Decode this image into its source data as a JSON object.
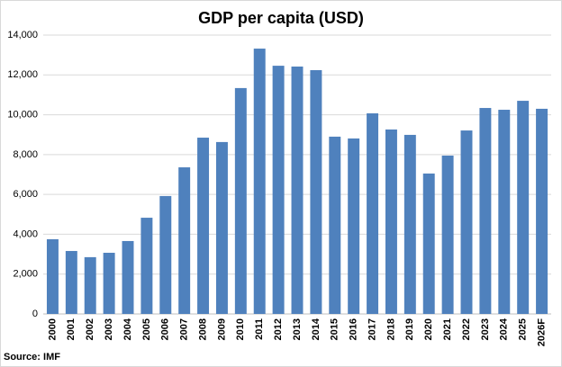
{
  "chart_data": {
    "type": "bar",
    "title": "GDP per capita (USD)",
    "source": "Source: IMF",
    "categories": [
      "2000",
      "2001",
      "2002",
      "2003",
      "2004",
      "2005",
      "2006",
      "2007",
      "2008",
      "2009",
      "2010",
      "2011",
      "2012",
      "2013",
      "2014",
      "2015",
      "2016",
      "2017",
      "2018",
      "2019",
      "2020",
      "2021",
      "2022",
      "2023",
      "2024",
      "2025",
      "2026F"
    ],
    "values": [
      3750,
      3160,
      2850,
      3070,
      3660,
      4830,
      5920,
      7360,
      8850,
      8630,
      11340,
      13320,
      12460,
      12420,
      12240,
      8900,
      8810,
      10070,
      9260,
      8990,
      7050,
      7950,
      9210,
      10340,
      10250,
      10700,
      10300
    ],
    "color": "#4f81bd",
    "ylim": [
      0,
      14000
    ],
    "yticks": [
      0,
      {
        "value": 2000,
        "label": "2,000"
      },
      {
        "value": 4000,
        "label": "4,000"
      },
      {
        "value": 6000,
        "label": "6,000"
      },
      {
        "value": 8000,
        "label": "8,000"
      },
      {
        "value": 10000,
        "label": "10,000"
      },
      {
        "value": 12000,
        "label": "12,000"
      },
      {
        "value": 14000,
        "label": "14,000"
      }
    ],
    "grid": true
  }
}
